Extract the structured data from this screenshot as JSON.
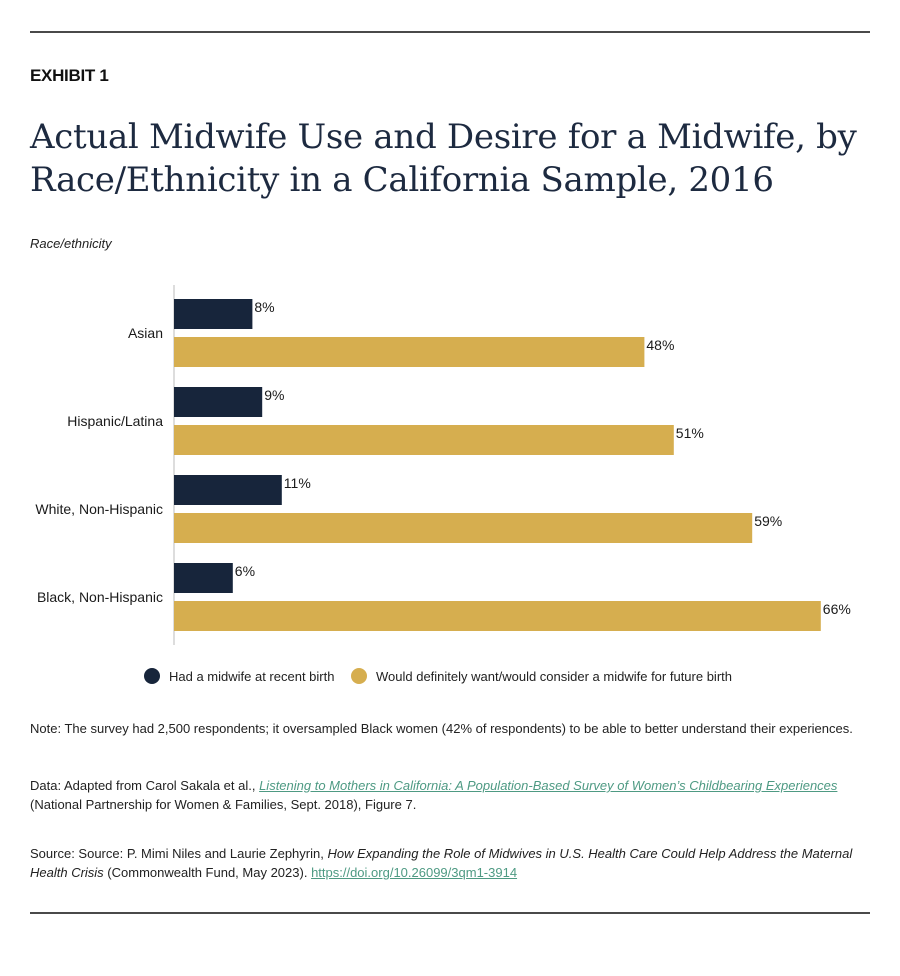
{
  "header": {
    "exhibit": "EXHIBIT 1",
    "title": "Actual Midwife Use and Desire for a Midwife, by Race/Ethnicity in a California Sample, 2016",
    "subhead": "Race/ethnicity"
  },
  "colors": {
    "series1": "#17253b",
    "series2": "#d6ae4f",
    "axis": "#bbbbbb",
    "link": "#4e9a83"
  },
  "chart_data": {
    "type": "bar",
    "orientation": "horizontal",
    "title": "Actual Midwife Use and Desire for a Midwife, by Race/Ethnicity in a California Sample, 2016",
    "ylabel": "Race/ethnicity",
    "xlabel": "",
    "xlim": [
      0,
      70
    ],
    "value_suffix": "%",
    "categories": [
      "Asian",
      "Hispanic/Latina",
      "White, Non-Hispanic",
      "Black, Non-Hispanic"
    ],
    "series": [
      {
        "name": "Had a midwife at recent birth",
        "values": [
          8,
          9,
          11,
          6
        ]
      },
      {
        "name": "Would definitely want/would consider a midwife for future birth",
        "values": [
          48,
          51,
          59,
          66
        ]
      }
    ],
    "legend_position": "bottom-center"
  },
  "notes": {
    "note": "Note: The survey had 2,500 respondents; it oversampled Black women (42% of respondents) to be able to better understand their experiences.",
    "data_prefix": "Data: Adapted from Carol Sakala et al., ",
    "data_link": "Listening to Mothers in California: A Population-Based Survey of Women’s Childbearing Experiences",
    "data_suffix": " (National Partnership for Women & Families, Sept. 2018), Figure 7.",
    "source_prefix": "Source: Source: P. Mimi Niles and Laurie Zephyrin, ",
    "source_title": "How Expanding the Role of Midwives in U.S. Health Care Could Help Address the Maternal Health Crisis",
    "source_suffix": " (Commonwealth Fund, May 2023). ",
    "source_link": "https://doi.org/10.26099/3qm1-3914"
  }
}
